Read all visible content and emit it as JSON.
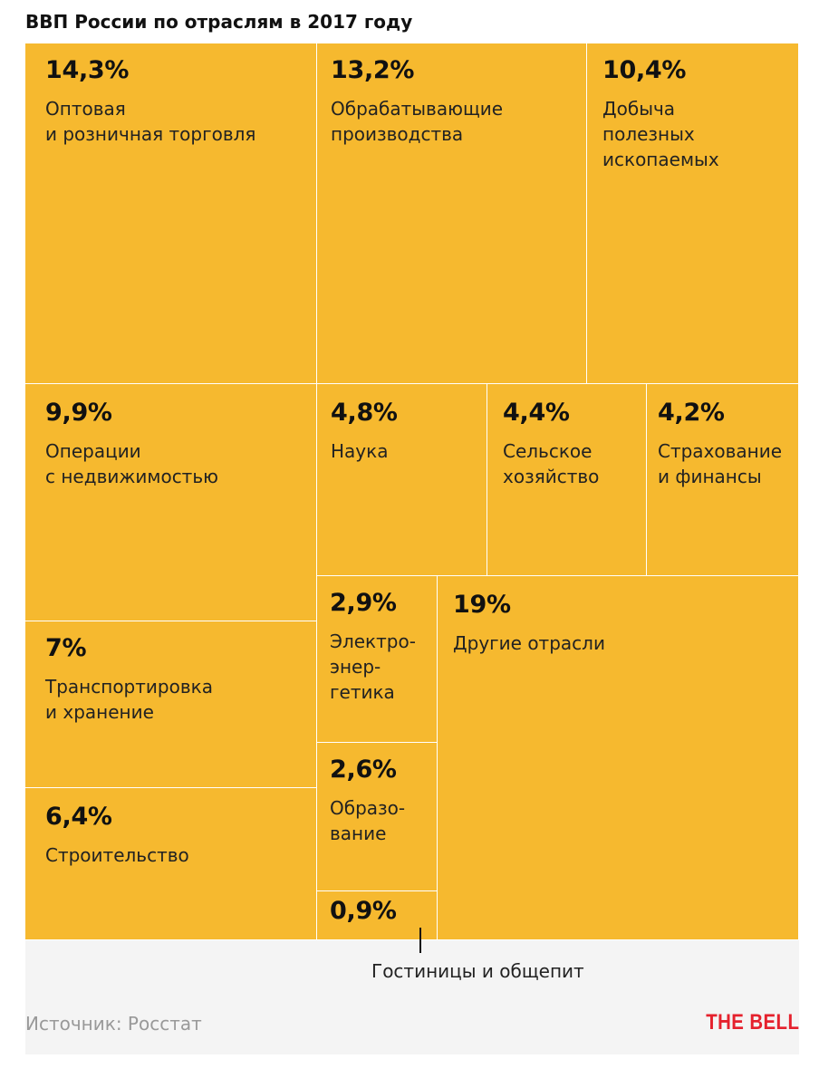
{
  "title": "ВВП России по отраслям в 2017 году",
  "chart_data": {
    "type": "treemap",
    "title": "ВВП России по отраслям в 2017 году",
    "unit": "%",
    "items": [
      {
        "value_label": "14,3%",
        "value": 14.3,
        "label": "Оптовая\nи розничная торговля"
      },
      {
        "value_label": "13,2%",
        "value": 13.2,
        "label": "Обрабатывающие\nпроизводства"
      },
      {
        "value_label": "10,4%",
        "value": 10.4,
        "label": "Добыча\nполезных\nископаемых"
      },
      {
        "value_label": "9,9%",
        "value": 9.9,
        "label": "Операции\nс недвижимостью"
      },
      {
        "value_label": "4,8%",
        "value": 4.8,
        "label": "Наука"
      },
      {
        "value_label": "4,4%",
        "value": 4.4,
        "label": "Сельское\nхозяйство"
      },
      {
        "value_label": "4,2%",
        "value": 4.2,
        "label": "Страхование\nи финансы"
      },
      {
        "value_label": "7%",
        "value": 7,
        "label": "Транспортировка\nи хранение"
      },
      {
        "value_label": "2,9%",
        "value": 2.9,
        "label": "Электро-\nэнер-\nгетика"
      },
      {
        "value_label": "19%",
        "value": 19,
        "label": "Другие отрасли"
      },
      {
        "value_label": "2,6%",
        "value": 2.6,
        "label": "Образо-\nвание"
      },
      {
        "value_label": "6,4%",
        "value": 6.4,
        "label": "Строительство"
      },
      {
        "value_label": "0,9%",
        "value": 0.9,
        "label": "Гостиницы и общепит"
      }
    ]
  },
  "source": "Источник: Росстат",
  "brand": "THE BELL",
  "colors": {
    "tile": "#f6b92f",
    "background": "#f4f4f4",
    "brand": "#e5212d"
  }
}
